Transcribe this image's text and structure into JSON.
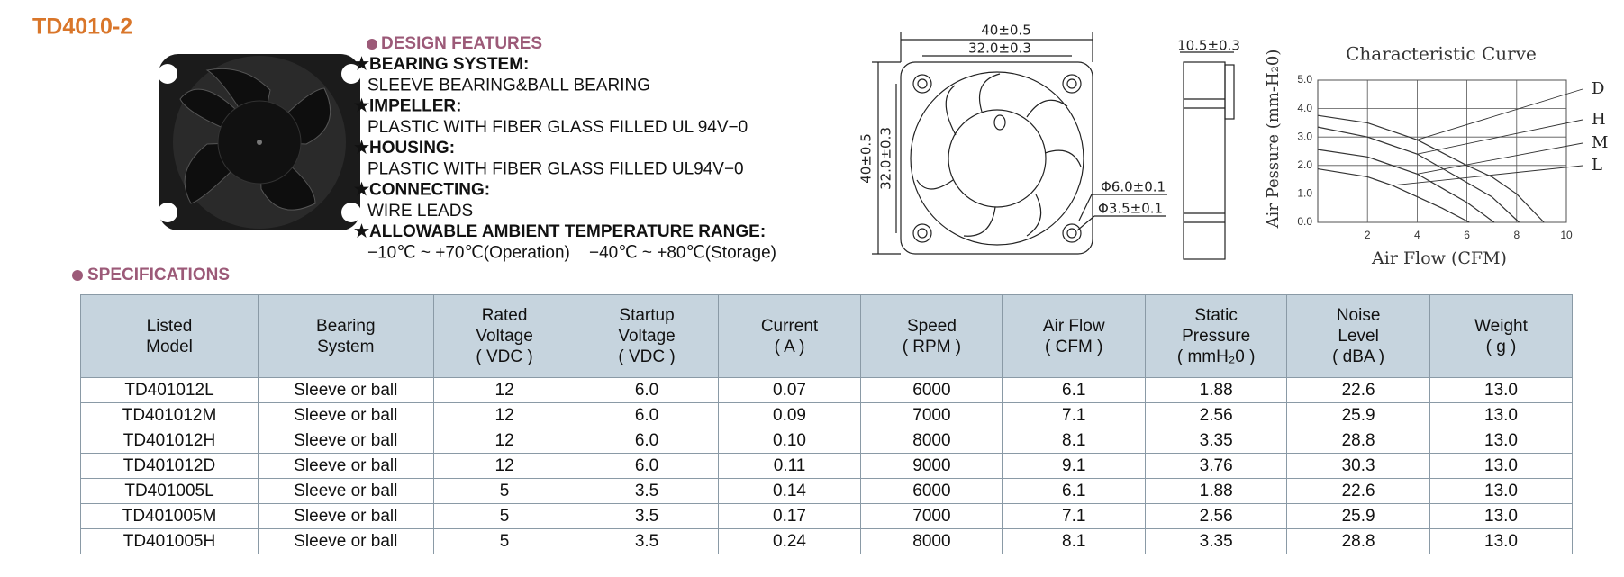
{
  "header": {
    "title": "TD4010-2"
  },
  "features": {
    "heading": "DESIGN FEATURES",
    "items": [
      {
        "label": "★BEARING SYSTEM:",
        "text": "SLEEVE BEARING&BALL BEARING"
      },
      {
        "label": "★IMPELLER:",
        "text": "PLASTIC WITH FIBER GLASS FILLED UL 94V−0"
      },
      {
        "label": "★HOUSING:",
        "text": "PLASTIC WITH FIBER GLASS FILLED UL94V−0"
      },
      {
        "label": "★CONNECTING:",
        "text": "WIRE LEADS"
      },
      {
        "label": "★ALLOWABLE AMBIENT TEMPERATURE RANGE:",
        "text": "−10℃ ~ +70℃(Operation)    −40℃ ~ +80℃(Storage)"
      }
    ]
  },
  "dimensions": {
    "width": "40±0.5",
    "hole_spacing": "32.0±0.3",
    "height": "40±0.5",
    "hole_spacing_v": "32.0±0.3",
    "depth": "10.5±0.3",
    "hub_hole": "Φ6.0±0.1",
    "mount_hole": "Φ3.5±0.1"
  },
  "curve": {
    "title": "Characteristic Curve",
    "x_label": "Air Flow (CFM)",
    "y_label": "Air Pessure (mm-H₂0)",
    "xlim": [
      0,
      10
    ],
    "ylim": [
      0,
      5
    ],
    "xticks": [
      2,
      4,
      6,
      8,
      10
    ],
    "yticks": [
      {
        "value": 0,
        "label": "0.0"
      },
      {
        "value": 1,
        "label": "1.0"
      },
      {
        "value": 2,
        "label": "2.0"
      },
      {
        "value": 3,
        "label": "3.0"
      },
      {
        "value": 4,
        "label": "4.0"
      },
      {
        "value": 5,
        "label": "5.0"
      }
    ],
    "series": [
      {
        "name": "D",
        "x": [
          0,
          2,
          4,
          6,
          7,
          8,
          9.1
        ],
        "values": [
          3.76,
          3.5,
          2.9,
          2.0,
          1.6,
          1.0,
          0
        ]
      },
      {
        "name": "H",
        "x": [
          0,
          2,
          4,
          6,
          7,
          8.1
        ],
        "values": [
          3.35,
          3.0,
          2.4,
          1.4,
          0.9,
          0
        ]
      },
      {
        "name": "M",
        "x": [
          0,
          2,
          4,
          5,
          6,
          7.1
        ],
        "values": [
          2.56,
          2.3,
          1.7,
          1.2,
          0.7,
          0
        ]
      },
      {
        "name": "L",
        "x": [
          0,
          2,
          3,
          4,
          5,
          6.1
        ],
        "values": [
          1.88,
          1.6,
          1.3,
          0.9,
          0.5,
          0
        ]
      }
    ]
  },
  "specifications": {
    "heading": "SPECIFICATIONS",
    "columns": [
      [
        "Listed",
        "Model"
      ],
      [
        "Bearing",
        "System"
      ],
      [
        "Rated",
        "Voltage",
        "( VDC )"
      ],
      [
        "Startup",
        "Voltage",
        "( VDC )"
      ],
      [
        "Current",
        "( A )"
      ],
      [
        "Speed",
        "( RPM )"
      ],
      [
        "Air Flow",
        "( CFM )"
      ],
      [
        "Static",
        "Pressure",
        "( mmH₂0 )"
      ],
      [
        "Noise",
        "Level",
        "( dBA )"
      ],
      [
        "Weight",
        "( g )"
      ]
    ],
    "rows": [
      [
        "TD401012L",
        "Sleeve or ball",
        "12",
        "6.0",
        "0.07",
        "6000",
        "6.1",
        "1.88",
        "22.6",
        "13.0"
      ],
      [
        "TD401012M",
        "Sleeve or ball",
        "12",
        "6.0",
        "0.09",
        "7000",
        "7.1",
        "2.56",
        "25.9",
        "13.0"
      ],
      [
        "TD401012H",
        "Sleeve or ball",
        "12",
        "6.0",
        "0.10",
        "8000",
        "8.1",
        "3.35",
        "28.8",
        "13.0"
      ],
      [
        "TD401012D",
        "Sleeve or ball",
        "12",
        "6.0",
        "0.11",
        "9000",
        "9.1",
        "3.76",
        "30.3",
        "13.0"
      ],
      [
        "TD401005L",
        "Sleeve or ball",
        "5",
        "3.5",
        "0.14",
        "6000",
        "6.1",
        "1.88",
        "22.6",
        "13.0"
      ],
      [
        "TD401005M",
        "Sleeve or ball",
        "5",
        "3.5",
        "0.17",
        "7000",
        "7.1",
        "2.56",
        "25.9",
        "13.0"
      ],
      [
        "TD401005H",
        "Sleeve or ball",
        "5",
        "3.5",
        "0.24",
        "8000",
        "8.1",
        "3.35",
        "28.8",
        "13.0"
      ]
    ]
  }
}
